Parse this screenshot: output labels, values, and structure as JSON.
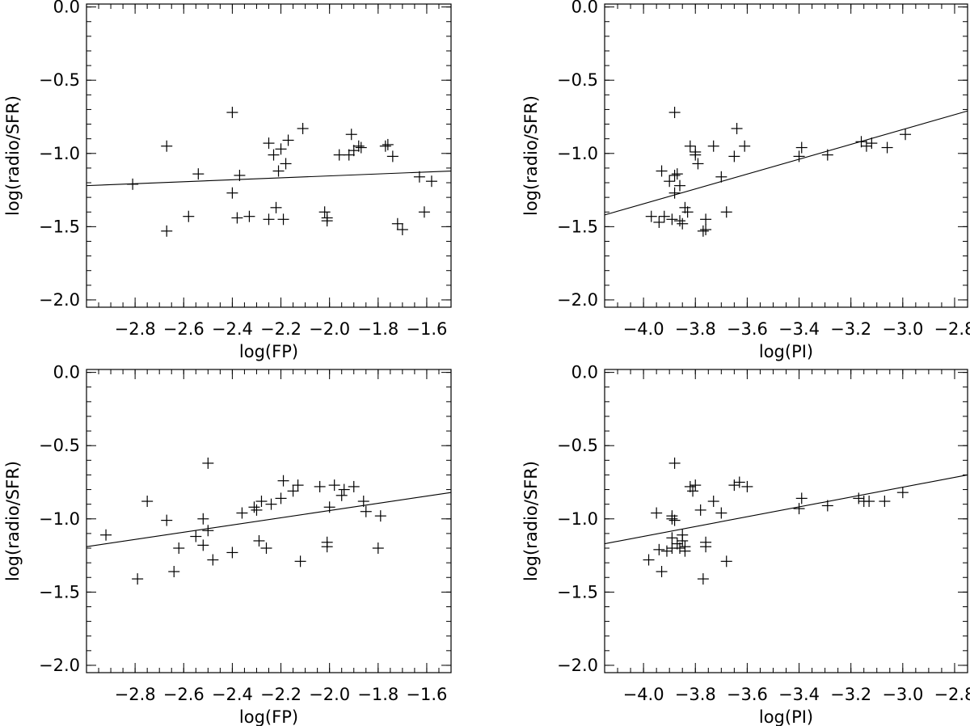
{
  "figure": {
    "layout": "2x2 grid of scatter plots with linear fits",
    "grid": false,
    "legend": "none"
  },
  "chart_data": [
    {
      "type": "scatter",
      "xlabel": "log(FP)",
      "ylabel": "log(radio/SFR)",
      "xlim": [
        -3.0,
        -1.5
      ],
      "ylim": [
        -2.05,
        0.02
      ],
      "xticks": [
        -2.8,
        -2.6,
        -2.4,
        -2.2,
        -2.0,
        -1.8,
        -1.6
      ],
      "xtick_labels": [
        "−2.8",
        "−2.6",
        "−2.4",
        "−2.2",
        "−2.0",
        "−1.8",
        "−1.6"
      ],
      "yticks": [
        -2.0,
        -1.5,
        -1.0,
        -0.5,
        0.0
      ],
      "ytick_labels": [
        "−2.0",
        "−1.5",
        "−1.0",
        "−0.5",
        "0.0"
      ],
      "marker": "plus",
      "fit_line": {
        "x": [
          -3.0,
          -1.5
        ],
        "y": [
          -1.22,
          -1.12
        ]
      },
      "points": [
        [
          -2.81,
          -1.21
        ],
        [
          -2.67,
          -0.95
        ],
        [
          -2.67,
          -1.53
        ],
        [
          -2.58,
          -1.43
        ],
        [
          -2.54,
          -1.14
        ],
        [
          -2.4,
          -0.72
        ],
        [
          -2.4,
          -1.27
        ],
        [
          -2.38,
          -1.44
        ],
        [
          -2.37,
          -1.15
        ],
        [
          -2.33,
          -1.43
        ],
        [
          -2.25,
          -0.93
        ],
        [
          -2.25,
          -1.45
        ],
        [
          -2.23,
          -1.01
        ],
        [
          -2.22,
          -1.37
        ],
        [
          -2.21,
          -1.12
        ],
        [
          -2.2,
          -0.97
        ],
        [
          -2.19,
          -1.45
        ],
        [
          -2.18,
          -1.07
        ],
        [
          -2.17,
          -0.91
        ],
        [
          -2.11,
          -0.83
        ],
        [
          -2.02,
          -1.4
        ],
        [
          -2.01,
          -1.46
        ],
        [
          -2.01,
          -1.44
        ],
        [
          -1.96,
          -1.01
        ],
        [
          -1.92,
          -1.01
        ],
        [
          -1.91,
          -0.87
        ],
        [
          -1.9,
          -0.98
        ],
        [
          -1.88,
          -0.95
        ],
        [
          -1.87,
          -0.96
        ],
        [
          -1.77,
          -0.95
        ],
        [
          -1.76,
          -0.94
        ],
        [
          -1.74,
          -1.02
        ],
        [
          -1.72,
          -1.48
        ],
        [
          -1.7,
          -1.52
        ],
        [
          -1.63,
          -1.16
        ],
        [
          -1.61,
          -1.4
        ],
        [
          -1.58,
          -1.19
        ]
      ]
    },
    {
      "type": "scatter",
      "xlabel": "log(PI)",
      "ylabel": "log(radio/SFR)",
      "xlim": [
        -4.15,
        -2.75
      ],
      "ylim": [
        -2.05,
        0.02
      ],
      "xticks": [
        -4.0,
        -3.8,
        -3.6,
        -3.4,
        -3.2,
        -3.0,
        -2.8
      ],
      "xtick_labels": [
        "−4.0",
        "−3.8",
        "−3.6",
        "−3.4",
        "−3.2",
        "−3.0",
        "−2.8"
      ],
      "yticks": [
        -2.0,
        -1.5,
        -1.0,
        -0.5,
        0.0
      ],
      "ytick_labels": [
        "−2.0",
        "−1.5",
        "−1.0",
        "−0.5",
        "0.0"
      ],
      "marker": "plus",
      "fit_line": {
        "x": [
          -4.15,
          -2.75
        ],
        "y": [
          -1.42,
          -0.71
        ]
      },
      "points": [
        [
          -3.97,
          -1.43
        ],
        [
          -3.94,
          -1.47
        ],
        [
          -3.93,
          -1.12
        ],
        [
          -3.92,
          -1.43
        ],
        [
          -3.9,
          -1.19
        ],
        [
          -3.89,
          -1.45
        ],
        [
          -3.88,
          -0.72
        ],
        [
          -3.88,
          -1.15
        ],
        [
          -3.88,
          -1.27
        ],
        [
          -3.87,
          -1.14
        ],
        [
          -3.86,
          -1.22
        ],
        [
          -3.86,
          -1.46
        ],
        [
          -3.85,
          -1.48
        ],
        [
          -3.84,
          -1.37
        ],
        [
          -3.83,
          -1.4
        ],
        [
          -3.82,
          -0.95
        ],
        [
          -3.8,
          -1.01
        ],
        [
          -3.8,
          -0.99
        ],
        [
          -3.79,
          -1.07
        ],
        [
          -3.77,
          -1.53
        ],
        [
          -3.76,
          -1.45
        ],
        [
          -3.76,
          -1.52
        ],
        [
          -3.73,
          -0.95
        ],
        [
          -3.7,
          -1.16
        ],
        [
          -3.68,
          -1.4
        ],
        [
          -3.65,
          -1.02
        ],
        [
          -3.64,
          -0.83
        ],
        [
          -3.61,
          -0.95
        ],
        [
          -3.4,
          -1.02
        ],
        [
          -3.39,
          -0.96
        ],
        [
          -3.29,
          -1.01
        ],
        [
          -3.16,
          -0.92
        ],
        [
          -3.14,
          -0.95
        ],
        [
          -3.12,
          -0.93
        ],
        [
          -3.06,
          -0.96
        ],
        [
          -2.99,
          -0.87
        ]
      ]
    },
    {
      "type": "scatter",
      "xlabel": "log(FP)",
      "ylabel": "log(radio/SFR)",
      "xlim": [
        -3.0,
        -1.5
      ],
      "ylim": [
        -2.05,
        0.02
      ],
      "xticks": [
        -2.8,
        -2.6,
        -2.4,
        -2.2,
        -2.0,
        -1.8,
        -1.6
      ],
      "xtick_labels": [
        "−2.8",
        "−2.6",
        "−2.4",
        "−2.2",
        "−2.0",
        "−1.8",
        "−1.6"
      ],
      "yticks": [
        -2.0,
        -1.5,
        -1.0,
        -0.5,
        0.0
      ],
      "ytick_labels": [
        "−2.0",
        "−1.5",
        "−1.0",
        "−0.5",
        "0.0"
      ],
      "marker": "plus",
      "fit_line": {
        "x": [
          -3.0,
          -1.5
        ],
        "y": [
          -1.19,
          -0.82
        ]
      },
      "points": [
        [
          -2.92,
          -1.11
        ],
        [
          -2.79,
          -1.41
        ],
        [
          -2.75,
          -0.88
        ],
        [
          -2.67,
          -1.01
        ],
        [
          -2.64,
          -1.36
        ],
        [
          -2.62,
          -1.2
        ],
        [
          -2.55,
          -1.12
        ],
        [
          -2.52,
          -1.0
        ],
        [
          -2.52,
          -1.18
        ],
        [
          -2.5,
          -1.08
        ],
        [
          -2.5,
          -0.62
        ],
        [
          -2.48,
          -1.28
        ],
        [
          -2.4,
          -1.23
        ],
        [
          -2.36,
          -0.96
        ],
        [
          -2.31,
          -0.92
        ],
        [
          -2.3,
          -0.94
        ],
        [
          -2.29,
          -1.15
        ],
        [
          -2.28,
          -0.88
        ],
        [
          -2.26,
          -1.2
        ],
        [
          -2.24,
          -0.9
        ],
        [
          -2.2,
          -0.86
        ],
        [
          -2.19,
          -0.74
        ],
        [
          -2.15,
          -0.81
        ],
        [
          -2.13,
          -0.77
        ],
        [
          -2.12,
          -1.29
        ],
        [
          -2.04,
          -0.78
        ],
        [
          -2.01,
          -1.16
        ],
        [
          -2.01,
          -1.19
        ],
        [
          -2.0,
          -0.92
        ],
        [
          -1.98,
          -0.77
        ],
        [
          -1.95,
          -0.84
        ],
        [
          -1.94,
          -0.8
        ],
        [
          -1.9,
          -0.78
        ],
        [
          -1.86,
          -0.88
        ],
        [
          -1.85,
          -0.95
        ],
        [
          -1.8,
          -1.2
        ],
        [
          -1.79,
          -0.98
        ]
      ]
    },
    {
      "type": "scatter",
      "xlabel": "log(PI)",
      "ylabel": "log(radio/SFR)",
      "xlim": [
        -4.15,
        -2.75
      ],
      "ylim": [
        -2.05,
        0.02
      ],
      "xticks": [
        -4.0,
        -3.8,
        -3.6,
        -3.4,
        -3.2,
        -3.0,
        -2.8
      ],
      "xtick_labels": [
        "−4.0",
        "−3.8",
        "−3.6",
        "−3.4",
        "−3.2",
        "−3.0",
        "−2.8"
      ],
      "yticks": [
        -2.0,
        -1.5,
        -1.0,
        -0.5,
        0.0
      ],
      "ytick_labels": [
        "−2.0",
        "−1.5",
        "−1.0",
        "−0.5",
        "0.0"
      ],
      "marker": "plus",
      "fit_line": {
        "x": [
          -4.15,
          -2.75
        ],
        "y": [
          -1.17,
          -0.7
        ]
      },
      "points": [
        [
          -3.98,
          -1.28
        ],
        [
          -3.95,
          -0.96
        ],
        [
          -3.94,
          -1.21
        ],
        [
          -3.93,
          -1.36
        ],
        [
          -3.91,
          -1.22
        ],
        [
          -3.89,
          -0.98
        ],
        [
          -3.89,
          -1.0
        ],
        [
          -3.89,
          -1.2
        ],
        [
          -3.89,
          -1.13
        ],
        [
          -3.88,
          -0.62
        ],
        [
          -3.88,
          -1.01
        ],
        [
          -3.87,
          -1.17
        ],
        [
          -3.86,
          -1.2
        ],
        [
          -3.85,
          -1.11
        ],
        [
          -3.85,
          -1.15
        ],
        [
          -3.84,
          -1.22
        ],
        [
          -3.84,
          -1.19
        ],
        [
          -3.82,
          -0.78
        ],
        [
          -3.81,
          -0.81
        ],
        [
          -3.8,
          -0.77
        ],
        [
          -3.78,
          -0.94
        ],
        [
          -3.77,
          -1.41
        ],
        [
          -3.76,
          -1.16
        ],
        [
          -3.76,
          -1.19
        ],
        [
          -3.73,
          -0.88
        ],
        [
          -3.7,
          -0.96
        ],
        [
          -3.68,
          -1.29
        ],
        [
          -3.65,
          -0.77
        ],
        [
          -3.63,
          -0.75
        ],
        [
          -3.6,
          -0.78
        ],
        [
          -3.4,
          -0.93
        ],
        [
          -3.39,
          -0.86
        ],
        [
          -3.29,
          -0.91
        ],
        [
          -3.17,
          -0.86
        ],
        [
          -3.15,
          -0.88
        ],
        [
          -3.13,
          -0.88
        ],
        [
          -3.07,
          -0.88
        ],
        [
          -3.0,
          -0.82
        ]
      ]
    }
  ]
}
